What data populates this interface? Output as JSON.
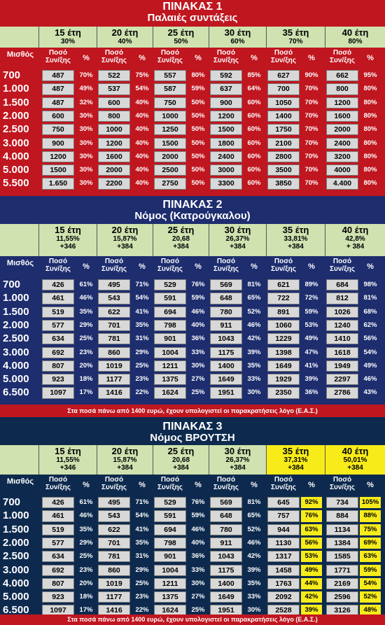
{
  "tables": [
    {
      "title": "ΠΙΝΑΚΑΣ 1",
      "subtitle": "Παλαιές συντάξεις",
      "bg": "#c0161f",
      "headers": [
        {
          "years": "15 έτη",
          "rate": "30%",
          "extra": "",
          "yellow": false
        },
        {
          "years": "20 έτη",
          "rate": "40%",
          "extra": "",
          "yellow": false
        },
        {
          "years": "25 έτη",
          "rate": "50%",
          "extra": "",
          "yellow": false
        },
        {
          "years": "30 έτη",
          "rate": "60%",
          "extra": "",
          "yellow": false
        },
        {
          "years": "35 έτη",
          "rate": "70%",
          "extra": "",
          "yellow": false
        },
        {
          "years": "40 έτη",
          "rate": "80%",
          "extra": "",
          "yellow": false
        }
      ],
      "salary_label": "Μισθός",
      "amount_label": "Ποσό Συν/ξης",
      "percent_label": "%",
      "rows": [
        {
          "salary": "700",
          "cells": [
            [
              "487",
              "70%"
            ],
            [
              "522",
              "75%"
            ],
            [
              "557",
              "80%"
            ],
            [
              "592",
              "85%"
            ],
            [
              "627",
              "90%"
            ],
            [
              "662",
              "95%"
            ]
          ]
        },
        {
          "salary": "1.000",
          "cells": [
            [
              "487",
              "49%"
            ],
            [
              "537",
              "54%"
            ],
            [
              "587",
              "59%"
            ],
            [
              "637",
              "64%"
            ],
            [
              "700",
              "70%"
            ],
            [
              "800",
              "80%"
            ]
          ]
        },
        {
          "salary": "1.500",
          "cells": [
            [
              "487",
              "32%"
            ],
            [
              "600",
              "40%"
            ],
            [
              "750",
              "50%"
            ],
            [
              "900",
              "60%"
            ],
            [
              "1050",
              "70%"
            ],
            [
              "1200",
              "80%"
            ]
          ]
        },
        {
          "salary": "2.000",
          "cells": [
            [
              "600",
              "30%"
            ],
            [
              "800",
              "40%"
            ],
            [
              "1000",
              "50%"
            ],
            [
              "1200",
              "60%"
            ],
            [
              "1400",
              "70%"
            ],
            [
              "1600",
              "80%"
            ]
          ]
        },
        {
          "salary": "2.500",
          "cells": [
            [
              "750",
              "30%"
            ],
            [
              "1000",
              "40%"
            ],
            [
              "1250",
              "50%"
            ],
            [
              "1500",
              "60%"
            ],
            [
              "1750",
              "70%"
            ],
            [
              "2000",
              "80%"
            ]
          ]
        },
        {
          "salary": "3.000",
          "cells": [
            [
              "900",
              "30%"
            ],
            [
              "1200",
              "40%"
            ],
            [
              "1500",
              "50%"
            ],
            [
              "1800",
              "60%"
            ],
            [
              "2100",
              "70%"
            ],
            [
              "2400",
              "80%"
            ]
          ]
        },
        {
          "salary": "4.000",
          "cells": [
            [
              "1200",
              "30%"
            ],
            [
              "1600",
              "40%"
            ],
            [
              "2000",
              "50%"
            ],
            [
              "2400",
              "60%"
            ],
            [
              "2800",
              "70%"
            ],
            [
              "3200",
              "80%"
            ]
          ]
        },
        {
          "salary": "5.000",
          "cells": [
            [
              "1500",
              "30%"
            ],
            [
              "2000",
              "40%"
            ],
            [
              "2500",
              "50%"
            ],
            [
              "3000",
              "60%"
            ],
            [
              "3500",
              "70%"
            ],
            [
              "4000",
              "80%"
            ]
          ]
        },
        {
          "salary": "5.500",
          "cells": [
            [
              "1.650",
              "30%"
            ],
            [
              "2200",
              "40%"
            ],
            [
              "2750",
              "50%"
            ],
            [
              "3300",
              "60%"
            ],
            [
              "3850",
              "70%"
            ],
            [
              "4.400",
              "80%"
            ]
          ]
        }
      ],
      "note": ""
    },
    {
      "title": "ΠΙΝΑΚΑΣ 2",
      "subtitle": "Νόμος (Κατρούγκαλου)",
      "bg": "#1d2d6e",
      "headers": [
        {
          "years": "15 έτη",
          "rate": "11,55%",
          "extra": "+346",
          "yellow": false
        },
        {
          "years": "20 έτη",
          "rate": "15,87%",
          "extra": "+384",
          "yellow": false
        },
        {
          "years": "25 έτη",
          "rate": "20,68",
          "extra": "+384",
          "yellow": false
        },
        {
          "years": "30 έτη",
          "rate": "26,37%",
          "extra": "+384",
          "yellow": false
        },
        {
          "years": "35 έτη",
          "rate": "33,81%",
          "extra": "+384",
          "yellow": false
        },
        {
          "years": "40 έτη",
          "rate": "42,8%",
          "extra": "+ 384",
          "yellow": false
        }
      ],
      "salary_label": "Μισθός",
      "amount_label": "Ποσό Συν/ξης",
      "percent_label": "%",
      "rows": [
        {
          "salary": "700",
          "cells": [
            [
              "426",
              "61%"
            ],
            [
              "495",
              "71%"
            ],
            [
              "529",
              "76%"
            ],
            [
              "569",
              "81%"
            ],
            [
              "621",
              "89%"
            ],
            [
              "684",
              "98%"
            ]
          ]
        },
        {
          "salary": "1.000",
          "cells": [
            [
              "461",
              "46%"
            ],
            [
              "543",
              "54%"
            ],
            [
              "591",
              "59%"
            ],
            [
              "648",
              "65%"
            ],
            [
              "722",
              "72%"
            ],
            [
              "812",
              "81%"
            ]
          ]
        },
        {
          "salary": "1.500",
          "cells": [
            [
              "519",
              "35%"
            ],
            [
              "622",
              "41%"
            ],
            [
              "694",
              "46%"
            ],
            [
              "780",
              "52%"
            ],
            [
              "891",
              "59%"
            ],
            [
              "1026",
              "68%"
            ]
          ]
        },
        {
          "salary": "2.000",
          "cells": [
            [
              "577",
              "29%"
            ],
            [
              "701",
              "35%"
            ],
            [
              "798",
              "40%"
            ],
            [
              "911",
              "46%"
            ],
            [
              "1060",
              "53%"
            ],
            [
              "1240",
              "62%"
            ]
          ]
        },
        {
          "salary": "2.500",
          "cells": [
            [
              "634",
              "25%"
            ],
            [
              "781",
              "31%"
            ],
            [
              "901",
              "36%"
            ],
            [
              "1043",
              "42%"
            ],
            [
              "1229",
              "49%"
            ],
            [
              "1410",
              "56%"
            ]
          ]
        },
        {
          "salary": "3.000",
          "cells": [
            [
              "692",
              "23%"
            ],
            [
              "860",
              "29%"
            ],
            [
              "1004",
              "33%"
            ],
            [
              "1175",
              "39%"
            ],
            [
              "1398",
              "47%"
            ],
            [
              "1618",
              "54%"
            ]
          ]
        },
        {
          "salary": "4.000",
          "cells": [
            [
              "807",
              "20%"
            ],
            [
              "1019",
              "25%"
            ],
            [
              "1211",
              "30%"
            ],
            [
              "1400",
              "35%"
            ],
            [
              "1649",
              "41%"
            ],
            [
              "1949",
              "49%"
            ]
          ]
        },
        {
          "salary": "5.000",
          "cells": [
            [
              "923",
              "18%"
            ],
            [
              "1177",
              "23%"
            ],
            [
              "1375",
              "27%"
            ],
            [
              "1649",
              "33%"
            ],
            [
              "1929",
              "39%"
            ],
            [
              "2297",
              "46%"
            ]
          ]
        },
        {
          "salary": "6.500",
          "cells": [
            [
              "1097",
              "17%"
            ],
            [
              "1416",
              "22%"
            ],
            [
              "1624",
              "25%"
            ],
            [
              "1951",
              "30%"
            ],
            [
              "2350",
              "36%"
            ],
            [
              "2786",
              "43%"
            ]
          ]
        }
      ],
      "note": "Στα ποσά πάνω από 1400 ευρώ, έχουν υπολογιστεί οι παρακρατήσεις λόγο (Ε.Α.Σ.)"
    },
    {
      "title": "ΠΙΝΑΚΑΣ 3",
      "subtitle": "Νόμος ΒΡΟΥΤΣΗ",
      "bg": "#0d2a4e",
      "headers": [
        {
          "years": "15 έτη",
          "rate": "11,55%",
          "extra": "+346",
          "yellow": false
        },
        {
          "years": "20 έτη",
          "rate": "15,87%",
          "extra": "+384",
          "yellow": false
        },
        {
          "years": "25 έτη",
          "rate": "20,68",
          "extra": "+384",
          "yellow": false
        },
        {
          "years": "30 έτη",
          "rate": "26,37%",
          "extra": "+384",
          "yellow": false
        },
        {
          "years": "35 έτη",
          "rate": "37,31%",
          "extra": "+384",
          "yellow": true
        },
        {
          "years": "40 έτη",
          "rate": "50,01%",
          "extra": "+384",
          "yellow": true
        }
      ],
      "salary_label": "Μισθός",
      "amount_label": "Ποσό Συν/ξης",
      "percent_label": "%",
      "rows": [
        {
          "salary": "700",
          "cells": [
            [
              "426",
              "61%"
            ],
            [
              "495",
              "71%"
            ],
            [
              "529",
              "76%"
            ],
            [
              "569",
              "81%"
            ],
            [
              "645",
              "92%"
            ],
            [
              "734",
              "105%"
            ]
          ]
        },
        {
          "salary": "1.000",
          "cells": [
            [
              "461",
              "46%"
            ],
            [
              "543",
              "54%"
            ],
            [
              "591",
              "59%"
            ],
            [
              "648",
              "65%"
            ],
            [
              "757",
              "76%"
            ],
            [
              "884",
              "88%"
            ]
          ]
        },
        {
          "salary": "1.500",
          "cells": [
            [
              "519",
              "35%"
            ],
            [
              "622",
              "41%"
            ],
            [
              "694",
              "46%"
            ],
            [
              "780",
              "52%"
            ],
            [
              "944",
              "63%"
            ],
            [
              "1134",
              "75%"
            ]
          ]
        },
        {
          "salary": "2.000",
          "cells": [
            [
              "577",
              "29%"
            ],
            [
              "701",
              "35%"
            ],
            [
              "798",
              "40%"
            ],
            [
              "911",
              "46%"
            ],
            [
              "1130",
              "56%"
            ],
            [
              "1384",
              "69%"
            ]
          ]
        },
        {
          "salary": "2.500",
          "cells": [
            [
              "634",
              "25%"
            ],
            [
              "781",
              "31%"
            ],
            [
              "901",
              "36%"
            ],
            [
              "1043",
              "42%"
            ],
            [
              "1317",
              "53%"
            ],
            [
              "1585",
              "63%"
            ]
          ]
        },
        {
          "salary": "3.000",
          "cells": [
            [
              "692",
              "23%"
            ],
            [
              "860",
              "29%"
            ],
            [
              "1004",
              "33%"
            ],
            [
              "1175",
              "39%"
            ],
            [
              "1458",
              "49%"
            ],
            [
              "1771",
              "59%"
            ]
          ]
        },
        {
          "salary": "4.000",
          "cells": [
            [
              "807",
              "20%"
            ],
            [
              "1019",
              "25%"
            ],
            [
              "1211",
              "30%"
            ],
            [
              "1400",
              "35%"
            ],
            [
              "1763",
              "44%"
            ],
            [
              "2169",
              "54%"
            ]
          ]
        },
        {
          "salary": "5.000",
          "cells": [
            [
              "923",
              "18%"
            ],
            [
              "1177",
              "23%"
            ],
            [
              "1375",
              "27%"
            ],
            [
              "1649",
              "33%"
            ],
            [
              "2092",
              "42%"
            ],
            [
              "2596",
              "52%"
            ]
          ]
        },
        {
          "salary": "6.500",
          "cells": [
            [
              "1097",
              "17%"
            ],
            [
              "1416",
              "22%"
            ],
            [
              "1624",
              "25%"
            ],
            [
              "1951",
              "30%"
            ],
            [
              "2528",
              "39%"
            ],
            [
              "3126",
              "48%"
            ]
          ]
        }
      ],
      "note": "Στα ποσά πάνω από 1400 ευρώ, έχουν υπολογιστεί οι παρακρατήσεις λόγο (Ε.Α.Σ.)"
    }
  ]
}
